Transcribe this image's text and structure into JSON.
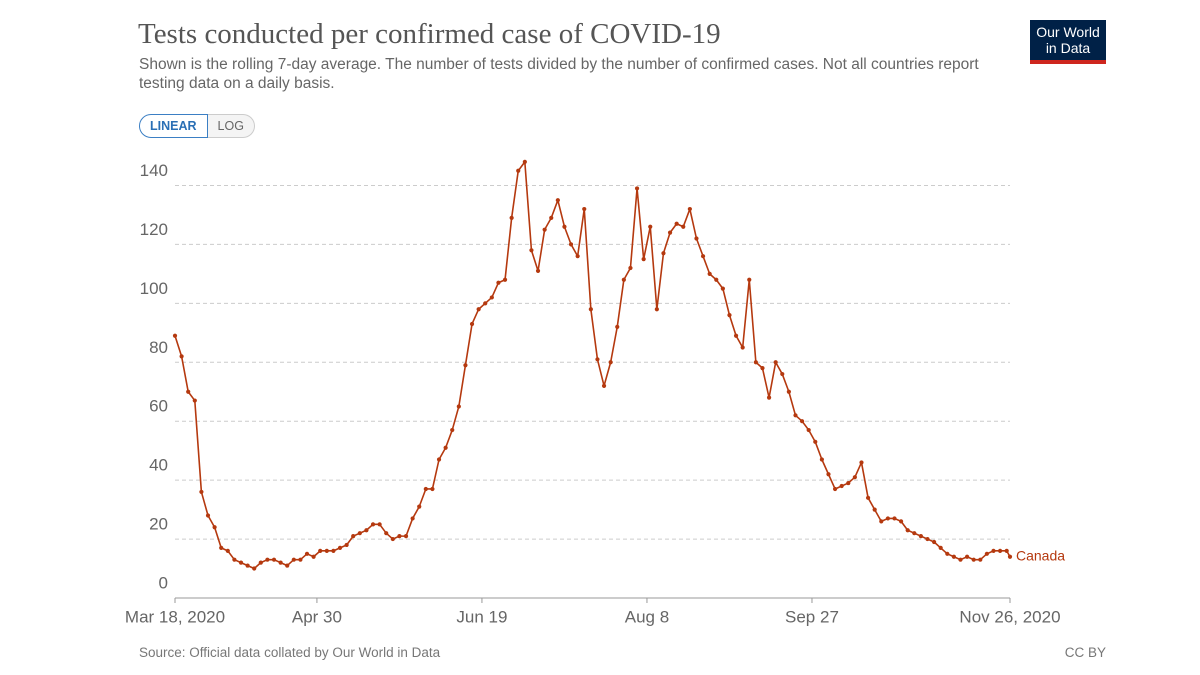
{
  "chart_data": {
    "type": "line",
    "title": "Tests conducted per confirmed case of COVID-19",
    "subtitle": "Shown is the rolling 7-day average. The number of tests divided by the number of confirmed cases. Not all countries report testing data on a daily basis.",
    "scale_buttons": [
      "LINEAR",
      "LOG"
    ],
    "log_scale": false,
    "logo": [
      "Our World",
      "in Data"
    ],
    "source": "Source: Official data collated by Our World in Data",
    "license": "CC BY",
    "grid": true,
    "x": [
      "2020-03-18",
      "2020-03-20",
      "2020-03-22",
      "2020-03-24",
      "2020-03-26",
      "2020-03-28",
      "2020-03-30",
      "2020-04-01",
      "2020-04-03",
      "2020-04-05",
      "2020-04-07",
      "2020-04-09",
      "2020-04-11",
      "2020-04-13",
      "2020-04-15",
      "2020-04-17",
      "2020-04-19",
      "2020-04-21",
      "2020-04-23",
      "2020-04-25",
      "2020-04-27",
      "2020-04-29",
      "2020-05-01",
      "2020-05-03",
      "2020-05-05",
      "2020-05-07",
      "2020-05-09",
      "2020-05-11",
      "2020-05-13",
      "2020-05-15",
      "2020-05-17",
      "2020-05-19",
      "2020-05-21",
      "2020-05-23",
      "2020-05-25",
      "2020-05-27",
      "2020-05-29",
      "2020-05-31",
      "2020-06-02",
      "2020-06-04",
      "2020-06-06",
      "2020-06-08",
      "2020-06-10",
      "2020-06-12",
      "2020-06-14",
      "2020-06-16",
      "2020-06-18",
      "2020-06-20",
      "2020-06-22",
      "2020-06-24",
      "2020-06-26",
      "2020-06-28",
      "2020-06-30",
      "2020-07-02",
      "2020-07-04",
      "2020-07-06",
      "2020-07-08",
      "2020-07-10",
      "2020-07-12",
      "2020-07-14",
      "2020-07-16",
      "2020-07-18",
      "2020-07-20",
      "2020-07-22",
      "2020-07-24",
      "2020-07-26",
      "2020-07-28",
      "2020-07-30",
      "2020-08-01",
      "2020-08-03",
      "2020-08-05",
      "2020-08-07",
      "2020-08-09",
      "2020-08-11",
      "2020-08-13",
      "2020-08-15",
      "2020-08-17",
      "2020-08-19",
      "2020-08-21",
      "2020-08-23",
      "2020-08-25",
      "2020-08-27",
      "2020-08-29",
      "2020-08-31",
      "2020-09-02",
      "2020-09-04",
      "2020-09-06",
      "2020-09-08",
      "2020-09-10",
      "2020-09-12",
      "2020-09-14",
      "2020-09-16",
      "2020-09-18",
      "2020-09-20",
      "2020-09-22",
      "2020-09-24",
      "2020-09-26",
      "2020-09-28",
      "2020-09-30",
      "2020-10-02",
      "2020-10-04",
      "2020-10-06",
      "2020-10-08",
      "2020-10-10",
      "2020-10-12",
      "2020-10-14",
      "2020-10-16",
      "2020-10-18",
      "2020-10-20",
      "2020-10-22",
      "2020-10-24",
      "2020-10-26",
      "2020-10-28",
      "2020-10-30",
      "2020-11-01",
      "2020-11-03",
      "2020-11-05",
      "2020-11-07",
      "2020-11-09",
      "2020-11-11",
      "2020-11-13",
      "2020-11-15",
      "2020-11-17",
      "2020-11-19",
      "2020-11-21",
      "2020-11-23",
      "2020-11-25",
      "2020-11-26"
    ],
    "series": [
      {
        "name": "Canada",
        "color": "#b5390f",
        "values": [
          89,
          82,
          70,
          67,
          36,
          28,
          24,
          17,
          16,
          13,
          12,
          11,
          10,
          12,
          13,
          13,
          12,
          11,
          13,
          13,
          15,
          14,
          16,
          16,
          16,
          17,
          18,
          21,
          22,
          23,
          25,
          25,
          22,
          20,
          21,
          21,
          27,
          31,
          37,
          37,
          47,
          51,
          57,
          65,
          79,
          93,
          98,
          100,
          102,
          107,
          108,
          129,
          145,
          148,
          118,
          111,
          125,
          129,
          135,
          126,
          120,
          116,
          132,
          98,
          81,
          72,
          80,
          92,
          108,
          112,
          139,
          115,
          126,
          98,
          117,
          124,
          127,
          126,
          132,
          122,
          116,
          110,
          108,
          105,
          96,
          89,
          85,
          108,
          80,
          78,
          68,
          80,
          76,
          70,
          62,
          60,
          57,
          53,
          47,
          42,
          37,
          38,
          39,
          41,
          46,
          34,
          30,
          26,
          27,
          27,
          26,
          23,
          22,
          21,
          20,
          19,
          17,
          15,
          14,
          13,
          14,
          13,
          13,
          15,
          16,
          16,
          16,
          14
        ]
      }
    ],
    "xlim": [
      "2020-03-18",
      "2020-11-26"
    ],
    "xticks": [
      {
        "value": "2020-03-18",
        "label": "Mar 18, 2020"
      },
      {
        "value": "2020-04-30",
        "label": "Apr 30"
      },
      {
        "value": "2020-06-19",
        "label": "Jun 19"
      },
      {
        "value": "2020-08-08",
        "label": "Aug 8"
      },
      {
        "value": "2020-09-27",
        "label": "Sep 27"
      },
      {
        "value": "2020-11-26",
        "label": "Nov 26, 2020"
      }
    ],
    "ylim": [
      0,
      150
    ],
    "yticks": [
      0,
      20,
      40,
      60,
      80,
      100,
      120,
      140
    ]
  }
}
